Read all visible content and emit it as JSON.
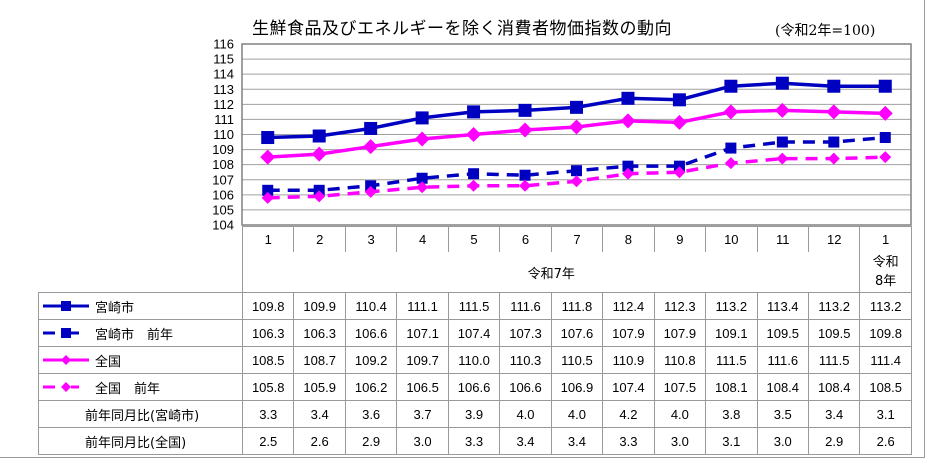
{
  "title": "生鮮食品及びエネルギーを除く消費者物価指数の動向",
  "unit_note": "(令和2年=100)",
  "months": [
    "1",
    "2",
    "3",
    "4",
    "5",
    "6",
    "7",
    "8",
    "9",
    "10",
    "11",
    "12",
    "1"
  ],
  "year_labels": {
    "main": "令和7年",
    "last_line1": "令和",
    "last_line2": "8年"
  },
  "rows": [
    {
      "label": "宮崎市",
      "key": "solid-square",
      "color": "#0000C0",
      "values": [
        "109.8",
        "109.9",
        "110.4",
        "111.1",
        "111.5",
        "111.6",
        "111.8",
        "112.4",
        "112.3",
        "113.2",
        "113.4",
        "113.2",
        "113.2"
      ]
    },
    {
      "label": "宮崎市　前年",
      "key": "dashed-square",
      "color": "#0000C0",
      "values": [
        "106.3",
        "106.3",
        "106.6",
        "107.1",
        "107.4",
        "107.3",
        "107.6",
        "107.9",
        "107.9",
        "109.1",
        "109.5",
        "109.5",
        "109.8"
      ]
    },
    {
      "label": "全国",
      "key": "solid-diamond",
      "color": "#FF00FF",
      "values": [
        "108.5",
        "108.7",
        "109.2",
        "109.7",
        "110.0",
        "110.3",
        "110.5",
        "110.9",
        "110.8",
        "111.5",
        "111.6",
        "111.5",
        "111.4"
      ]
    },
    {
      "label": "全国　前年",
      "key": "dashed-diamond",
      "color": "#FF00FF",
      "values": [
        "105.8",
        "105.9",
        "106.2",
        "106.5",
        "106.6",
        "106.6",
        "106.9",
        "107.4",
        "107.5",
        "108.1",
        "108.4",
        "108.4",
        "108.5"
      ]
    },
    {
      "label": "前年同月比(宮崎市)",
      "key": "none",
      "values": [
        "3.3",
        "3.4",
        "3.6",
        "3.7",
        "3.9",
        "4.0",
        "4.0",
        "4.2",
        "4.0",
        "3.8",
        "3.5",
        "3.4",
        "3.1"
      ]
    },
    {
      "label": "前年同月比(全国)",
      "key": "none",
      "values": [
        "2.5",
        "2.6",
        "2.9",
        "3.0",
        "3.3",
        "3.4",
        "3.4",
        "3.3",
        "3.0",
        "3.1",
        "3.0",
        "2.9",
        "2.6"
      ]
    }
  ],
  "chart_data": {
    "type": "line",
    "title": "生鮮食品及びエネルギーを除く消費者物価指数の動向",
    "subtitle": "(令和2年=100)",
    "xlabel": "令和7年 1–12月, 令和8年 1月",
    "ylabel": "",
    "categories": [
      "R7-1",
      "R7-2",
      "R7-3",
      "R7-4",
      "R7-5",
      "R7-6",
      "R7-7",
      "R7-8",
      "R7-9",
      "R7-10",
      "R7-11",
      "R7-12",
      "R8-1"
    ],
    "yticks": [
      104,
      105,
      106,
      107,
      108,
      109,
      110,
      111,
      112,
      113,
      114,
      115,
      116
    ],
    "ylim": [
      104,
      116
    ],
    "grid": true,
    "legend_position": "data-table",
    "series": [
      {
        "name": "宮崎市",
        "style": "solid",
        "marker": "square",
        "color": "#0000C0",
        "values": [
          109.8,
          109.9,
          110.4,
          111.1,
          111.5,
          111.6,
          111.8,
          112.4,
          112.3,
          113.2,
          113.4,
          113.2,
          113.2
        ]
      },
      {
        "name": "宮崎市 前年",
        "style": "dashed",
        "marker": "square",
        "color": "#0000C0",
        "values": [
          106.3,
          106.3,
          106.6,
          107.1,
          107.4,
          107.3,
          107.6,
          107.9,
          107.9,
          109.1,
          109.5,
          109.5,
          109.8
        ]
      },
      {
        "name": "全国",
        "style": "solid",
        "marker": "diamond",
        "color": "#FF00FF",
        "values": [
          108.5,
          108.7,
          109.2,
          109.7,
          110.0,
          110.3,
          110.5,
          110.9,
          110.8,
          111.5,
          111.6,
          111.5,
          111.4
        ]
      },
      {
        "name": "全国 前年",
        "style": "dashed",
        "marker": "diamond",
        "color": "#FF00FF",
        "values": [
          105.8,
          105.9,
          106.2,
          106.5,
          106.6,
          106.6,
          106.9,
          107.4,
          107.5,
          108.1,
          108.4,
          108.4,
          108.5
        ]
      }
    ],
    "table_rows": [
      {
        "name": "前年同月比(宮崎市)",
        "values": [
          3.3,
          3.4,
          3.6,
          3.7,
          3.9,
          4.0,
          4.0,
          4.2,
          4.0,
          3.8,
          3.5,
          3.4,
          3.1
        ]
      },
      {
        "name": "前年同月比(全国)",
        "values": [
          2.5,
          2.6,
          2.9,
          3.0,
          3.3,
          3.4,
          3.4,
          3.3,
          3.0,
          3.1,
          3.0,
          2.9,
          2.6
        ]
      }
    ]
  }
}
